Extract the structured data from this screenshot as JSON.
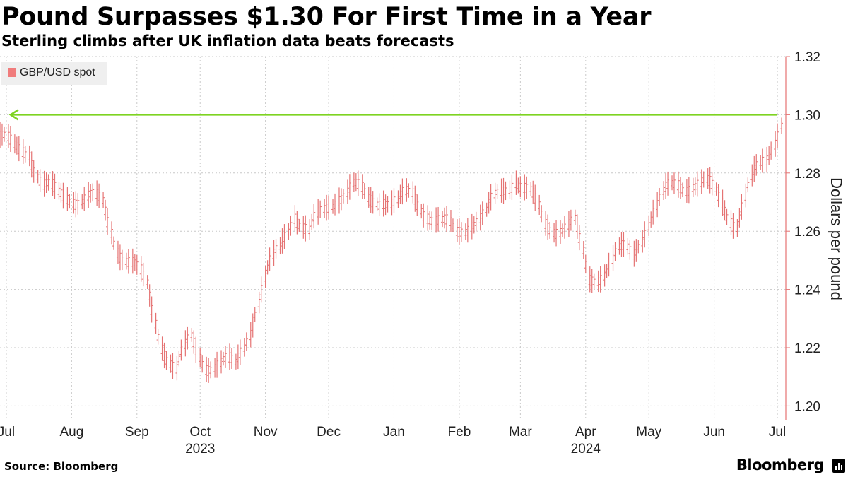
{
  "header": {
    "title": "Pound Surpasses $1.30 For First Time in a Year",
    "subtitle": "Sterling climbs after UK inflation data beats forecasts"
  },
  "footer": {
    "source": "Source: Bloomberg",
    "brand": "Bloomberg"
  },
  "colors": {
    "series": "#e57373",
    "arrow": "#7ed321",
    "grid": "#c8c8c8",
    "axis": "#e57373"
  },
  "chart_data": {
    "type": "line",
    "title": "Pound Surpasses $1.30 For First Time in a Year",
    "subtitle": "Sterling climbs after UK inflation data beats forecasts",
    "ylabel": "Dollars per pound",
    "xlabel": "",
    "ylim": [
      1.195,
      1.32
    ],
    "yticks": [
      1.2,
      1.22,
      1.24,
      1.26,
      1.28,
      1.3,
      1.32
    ],
    "ytick_labels": [
      "1.20",
      "1.22",
      "1.24",
      "1.26",
      "1.28",
      "1.30",
      "1.32"
    ],
    "y_axis_position": "right",
    "grid": true,
    "legend": {
      "position": "top-left",
      "entries": [
        "GBP/USD spot"
      ]
    },
    "xlim": [
      "2023-07-12",
      "2024-07-19"
    ],
    "month_ticks": [
      {
        "date": "2023-07-15",
        "label": "Jul"
      },
      {
        "date": "2023-08-15",
        "label": "Aug"
      },
      {
        "date": "2023-09-15",
        "label": "Sep"
      },
      {
        "date": "2023-10-15",
        "label": "Oct"
      },
      {
        "date": "2023-11-15",
        "label": "Nov"
      },
      {
        "date": "2023-12-15",
        "label": "Dec"
      },
      {
        "date": "2024-01-15",
        "label": "Jan"
      },
      {
        "date": "2024-02-15",
        "label": "Feb"
      },
      {
        "date": "2024-03-15",
        "label": "Mar"
      },
      {
        "date": "2024-04-15",
        "label": "Apr"
      },
      {
        "date": "2024-05-15",
        "label": "May"
      },
      {
        "date": "2024-06-15",
        "label": "Jun"
      },
      {
        "date": "2024-07-15",
        "label": "Jul"
      }
    ],
    "year_labels": [
      {
        "date": "2023-10-15",
        "label": "2023"
      },
      {
        "date": "2024-04-15",
        "label": "2024"
      }
    ],
    "annotation": {
      "type": "arrow",
      "from": {
        "date": "2024-07-15",
        "value": 1.3
      },
      "to": {
        "date": "2023-07-17",
        "value": 1.3
      }
    },
    "series": [
      {
        "name": "GBP/USD spot",
        "style": "ohlc-bars",
        "points": [
          [
            "2023-07-12",
            1.293
          ],
          [
            "2023-07-19",
            1.287
          ],
          [
            "2023-07-26",
            1.289
          ],
          [
            "2023-08-02",
            1.276
          ],
          [
            "2023-08-09",
            1.271
          ],
          [
            "2023-08-16",
            1.273
          ],
          [
            "2023-08-23",
            1.272
          ],
          [
            "2023-08-30",
            1.268
          ],
          [
            "2023-09-06",
            1.256
          ],
          [
            "2023-09-13",
            1.249
          ],
          [
            "2023-09-20",
            1.24
          ],
          [
            "2023-09-27",
            1.223
          ],
          [
            "2023-10-04",
            1.212
          ],
          [
            "2023-10-11",
            1.222
          ],
          [
            "2023-10-18",
            1.216
          ],
          [
            "2023-10-25",
            1.214
          ],
          [
            "2023-11-01",
            1.213
          ],
          [
            "2023-11-08",
            1.228
          ],
          [
            "2023-11-15",
            1.243
          ],
          [
            "2023-11-22",
            1.253
          ],
          [
            "2023-11-29",
            1.268
          ],
          [
            "2023-12-06",
            1.259
          ],
          [
            "2023-12-13",
            1.266
          ],
          [
            "2023-12-20",
            1.274
          ],
          [
            "2023-12-27",
            1.275
          ],
          [
            "2024-01-03",
            1.27
          ],
          [
            "2024-01-10",
            1.273
          ],
          [
            "2024-01-17",
            1.269
          ],
          [
            "2024-01-24",
            1.272
          ],
          [
            "2024-01-31",
            1.268
          ],
          [
            "2024-02-07",
            1.262
          ],
          [
            "2024-02-14",
            1.259
          ],
          [
            "2024-02-21",
            1.265
          ],
          [
            "2024-02-28",
            1.265
          ],
          [
            "2024-03-06",
            1.273
          ],
          [
            "2024-03-13",
            1.28
          ],
          [
            "2024-03-20",
            1.272
          ],
          [
            "2024-03-27",
            1.262
          ],
          [
            "2024-04-03",
            1.263
          ],
          [
            "2024-04-10",
            1.262
          ],
          [
            "2024-04-17",
            1.243
          ],
          [
            "2024-04-24",
            1.248
          ],
          [
            "2024-05-01",
            1.252
          ],
          [
            "2024-05-08",
            1.252
          ],
          [
            "2024-05-15",
            1.265
          ],
          [
            "2024-05-22",
            1.271
          ],
          [
            "2024-05-29",
            1.276
          ],
          [
            "2024-06-05",
            1.278
          ],
          [
            "2024-06-12",
            1.275
          ],
          [
            "2024-06-19",
            1.27
          ],
          [
            "2024-06-26",
            1.264
          ],
          [
            "2024-07-03",
            1.276
          ],
          [
            "2024-07-10",
            1.285
          ],
          [
            "2024-07-17",
            1.299
          ]
        ]
      }
    ]
  }
}
